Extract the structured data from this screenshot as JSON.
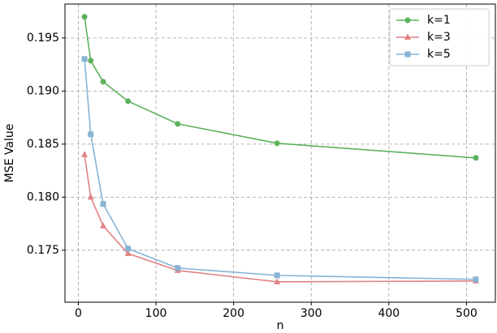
{
  "chart_data": {
    "type": "line",
    "x_label": "n",
    "y_label": "MSE Value",
    "x": [
      8,
      16,
      32,
      64,
      128,
      256,
      512
    ],
    "series": [
      {
        "name": "k=1",
        "color": "#5cb25c",
        "marker": "circle",
        "values": [
          0.197,
          0.19286,
          0.19088,
          0.18905,
          0.18691,
          0.18508,
          0.1837
        ]
      },
      {
        "name": "k=3",
        "color": "#e08284",
        "marker": "triangle",
        "values": [
          0.18401,
          0.18,
          0.17729,
          0.17469,
          0.17309,
          0.17202,
          0.1721
        ]
      },
      {
        "name": "k=5",
        "color": "#87b3d4",
        "marker": "square",
        "values": [
          0.19302,
          0.18592,
          0.17935,
          0.17515,
          0.17332,
          0.17263,
          0.17225
        ]
      }
    ],
    "xlim": [
      -17.2,
      537.2
    ],
    "xticks": [
      0,
      100,
      200,
      300,
      400,
      500
    ],
    "ylim": [
      0.1701,
      0.1982
    ],
    "yticks": [
      0.175,
      {
        "value": 0.18,
        "label": "0.180"
      },
      0.185,
      {
        "value": 0.19,
        "label": "0.190"
      },
      0.195
    ],
    "grid": true,
    "legend": "upper right"
  }
}
